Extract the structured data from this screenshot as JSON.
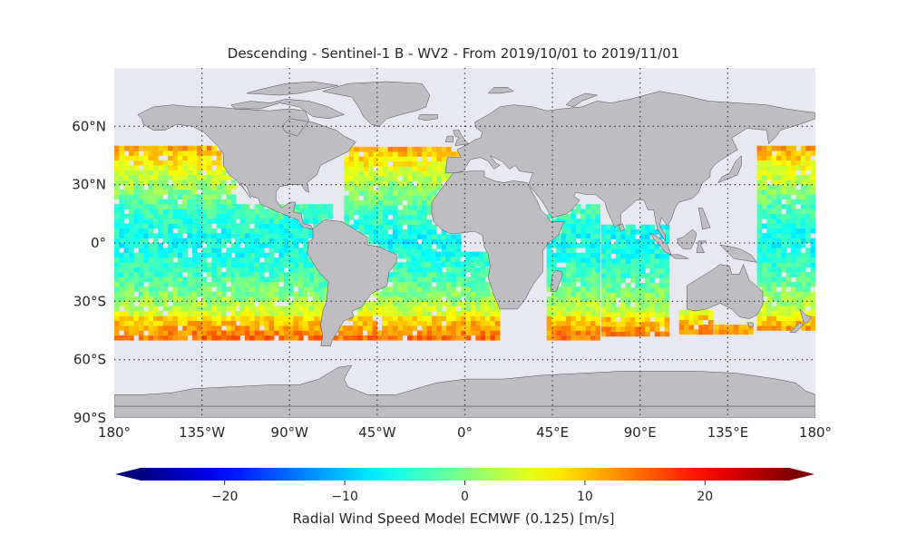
{
  "title": "Descending - Sentinel-1 B - WV2 - From 2019/10/01 to 2019/11/01",
  "lon_ticks": [
    {
      "lon": -180,
      "label": "180°"
    },
    {
      "lon": -135,
      "label": "135°W"
    },
    {
      "lon": -90,
      "label": "90°W"
    },
    {
      "lon": -45,
      "label": "45°W"
    },
    {
      "lon": 0,
      "label": "0°"
    },
    {
      "lon": 45,
      "label": "45°E"
    },
    {
      "lon": 90,
      "label": "90°E"
    },
    {
      "lon": 135,
      "label": "135°E"
    },
    {
      "lon": 180,
      "label": "180°"
    }
  ],
  "lat_ticks": [
    {
      "lat": 60,
      "label": "60°N"
    },
    {
      "lat": 30,
      "label": "30°N"
    },
    {
      "lat": 0,
      "label": "0°"
    },
    {
      "lat": -30,
      "label": "30°S"
    },
    {
      "lat": -60,
      "label": "60°S"
    },
    {
      "lat": -90,
      "label": "90°S"
    }
  ],
  "colorbar": {
    "label": "Radial Wind Speed Model ECMWF (0.125) [m/s]",
    "min": -27,
    "max": 27,
    "colormap": "jet",
    "extend": "both",
    "ticks": [
      {
        "value": -20,
        "label": "−20"
      },
      {
        "value": -10,
        "label": "−10"
      },
      {
        "value": 0,
        "label": "0"
      },
      {
        "value": 10,
        "label": "10"
      },
      {
        "value": 20,
        "label": "20"
      }
    ]
  },
  "colors": {
    "ocean_background": "#e8e8f0",
    "land": "#bdbdc2",
    "coastline": "#4a4a4a",
    "grid": "#333333"
  },
  "map": {
    "projection": "PlateCarree",
    "lon_range": [
      -180,
      180
    ],
    "lat_range": [
      -90,
      90
    ],
    "data_lat_range": [
      -50,
      50
    ],
    "gridlines": "dotted"
  }
}
